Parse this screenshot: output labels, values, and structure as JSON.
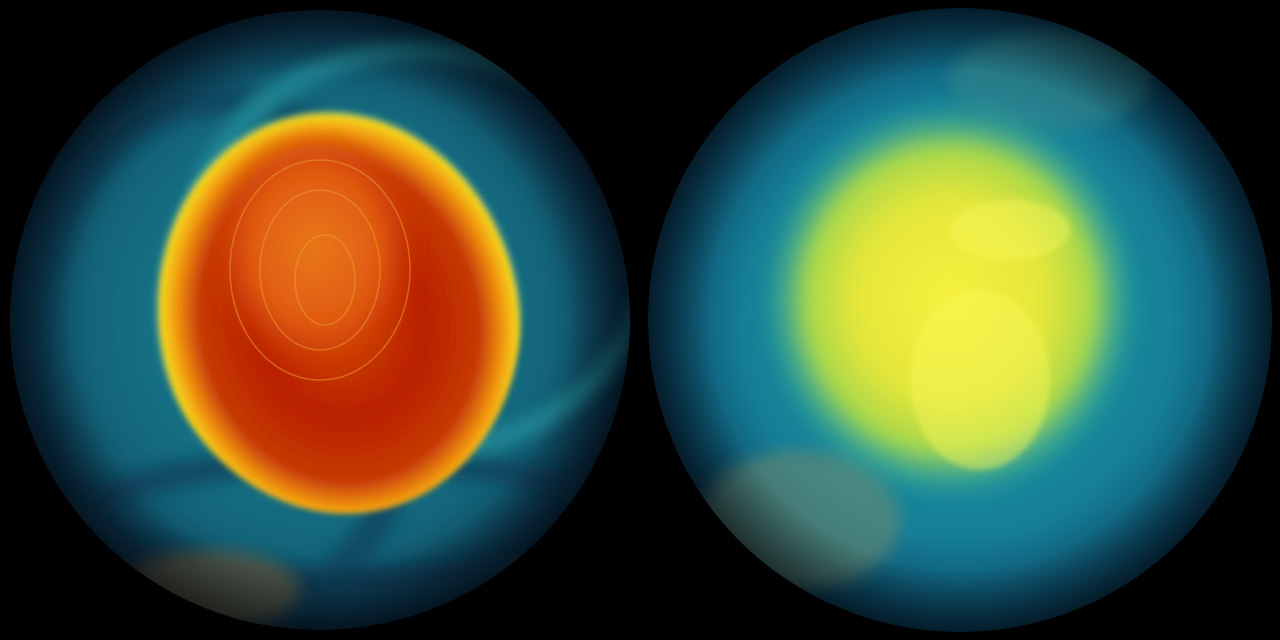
{
  "background": "#000000",
  "globes": [
    {
      "name": "southern-hemisphere-globe",
      "colors": {
        "ocean": "#0e4f6a",
        "swirl": "#1f8fa0",
        "ring": "#f2d21a",
        "core": "#b82000",
        "mid": "#e86a10"
      }
    },
    {
      "name": "northern-hemisphere-globe",
      "colors": {
        "ocean": "#0d5f82",
        "rim": "#19a6b4",
        "core": "#f4f23a",
        "land": "#b7d944"
      }
    }
  ]
}
